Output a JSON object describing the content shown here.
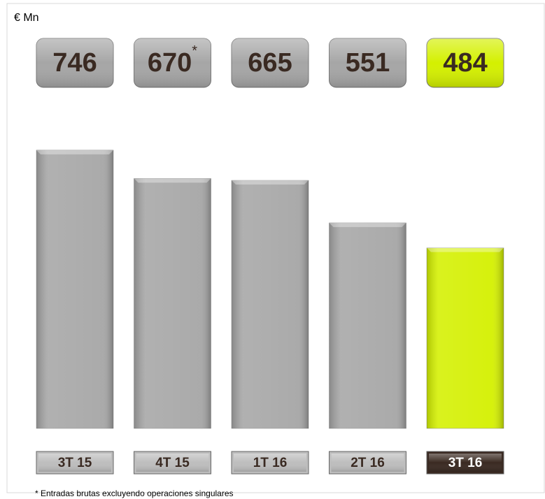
{
  "chart_data": {
    "type": "bar",
    "unit": "€ Mn",
    "categories": [
      "3T 15",
      "4T 15",
      "1T 16",
      "2T 16",
      "3T 16"
    ],
    "values": [
      746,
      670,
      665,
      551,
      484
    ],
    "value_labels": [
      "746",
      "670*",
      "665",
      "551",
      "484"
    ],
    "colors": [
      "#a6a6a6",
      "#a6a6a6",
      "#a6a6a6",
      "#a6a6a6",
      "#d4f000"
    ],
    "category_colors": [
      "#bdbdbd",
      "#bdbdbd",
      "#bdbdbd",
      "#bdbdbd",
      "#3a2a22"
    ],
    "category_text_colors": [
      "#3a2a22",
      "#3a2a22",
      "#3a2a22",
      "#3a2a22",
      "#ffffff"
    ],
    "ylim": [
      0,
      800
    ],
    "footnote": "* Entradas brutas excluyendo operaciones singulares"
  }
}
